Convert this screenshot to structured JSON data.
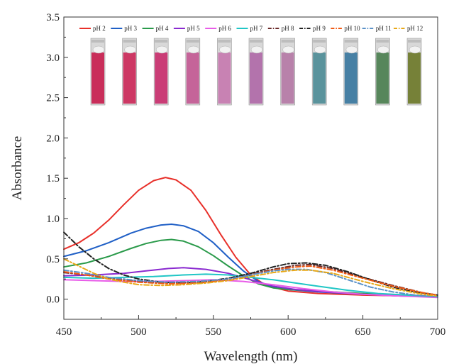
{
  "chart_data": {
    "type": "line",
    "xlabel": "Wavelength (nm)",
    "ylabel": "Absorbance",
    "xlim": [
      450,
      700
    ],
    "ylim": [
      -0.25,
      3.5
    ],
    "xticks": [
      "450",
      "500",
      "550",
      "600",
      "650",
      "700"
    ],
    "yticks": [
      "0.0",
      "0.5",
      "1.0",
      "1.5",
      "2.0",
      "2.5",
      "3.0",
      "3.5"
    ],
    "grid": false,
    "legend_position": "top",
    "inset": "photograph of 11 cuvettes above the curves, colour changing from red (pH 2) through pink and purple to blue-green (pH 9-11) and olive (pH 12)",
    "cuvette_colors": [
      "#c8204f",
      "#cc2a5a",
      "#c9306e",
      "#c35a94",
      "#c77bb0",
      "#b06aa8",
      "#b57aa6",
      "#4f8d97",
      "#3b78a0",
      "#4c7f50",
      "#6e7a2a"
    ],
    "series": [
      {
        "name": "pH 2",
        "color": "#e8302a",
        "dash": "solid",
        "x": [
          450,
          460,
          470,
          480,
          490,
          500,
          510,
          518,
          525,
          535,
          545,
          555,
          565,
          575,
          585,
          600,
          620,
          650,
          680,
          700
        ],
        "y": [
          0.62,
          0.7,
          0.82,
          0.98,
          1.17,
          1.35,
          1.47,
          1.51,
          1.48,
          1.35,
          1.1,
          0.8,
          0.52,
          0.3,
          0.17,
          0.1,
          0.07,
          0.05,
          0.04,
          0.03
        ]
      },
      {
        "name": "pH 3",
        "color": "#1f5fc6",
        "dash": "solid",
        "x": [
          450,
          465,
          480,
          495,
          505,
          515,
          522,
          530,
          540,
          550,
          560,
          570,
          580,
          590,
          600,
          620,
          650,
          680,
          700
        ],
        "y": [
          0.53,
          0.6,
          0.7,
          0.82,
          0.88,
          0.92,
          0.93,
          0.91,
          0.84,
          0.7,
          0.52,
          0.35,
          0.22,
          0.15,
          0.12,
          0.09,
          0.06,
          0.04,
          0.03
        ]
      },
      {
        "name": "pH 4",
        "color": "#2a9a4a",
        "dash": "solid",
        "x": [
          450,
          465,
          480,
          495,
          505,
          515,
          522,
          530,
          540,
          550,
          560,
          570,
          580,
          590,
          600,
          620,
          650,
          680,
          700
        ],
        "y": [
          0.4,
          0.45,
          0.53,
          0.63,
          0.69,
          0.73,
          0.74,
          0.72,
          0.65,
          0.54,
          0.41,
          0.29,
          0.19,
          0.14,
          0.12,
          0.1,
          0.07,
          0.05,
          0.03
        ]
      },
      {
        "name": "pH 5",
        "color": "#8a2ad0",
        "dash": "solid",
        "x": [
          450,
          470,
          490,
          505,
          520,
          530,
          545,
          560,
          575,
          590,
          605,
          625,
          650,
          675,
          700
        ],
        "y": [
          0.29,
          0.3,
          0.32,
          0.35,
          0.38,
          0.39,
          0.37,
          0.32,
          0.24,
          0.16,
          0.12,
          0.09,
          0.06,
          0.04,
          0.03
        ]
      },
      {
        "name": "pH 6",
        "color": "#e85ce8",
        "dash": "solid",
        "x": [
          450,
          470,
          490,
          510,
          530,
          550,
          570,
          590,
          610,
          630,
          650,
          675,
          700
        ],
        "y": [
          0.24,
          0.23,
          0.22,
          0.22,
          0.23,
          0.24,
          0.22,
          0.18,
          0.13,
          0.09,
          0.06,
          0.04,
          0.02
        ]
      },
      {
        "name": "pH 7",
        "color": "#20c6c6",
        "dash": "solid",
        "x": [
          450,
          470,
          490,
          510,
          530,
          545,
          560,
          575,
          590,
          605,
          620,
          640,
          660,
          680,
          700
        ],
        "y": [
          0.27,
          0.26,
          0.27,
          0.28,
          0.3,
          0.31,
          0.3,
          0.27,
          0.24,
          0.2,
          0.16,
          0.11,
          0.07,
          0.05,
          0.03
        ]
      },
      {
        "name": "pH 8",
        "color": "#6b2a2a",
        "dash": "dashdot",
        "x": [
          450,
          465,
          480,
          500,
          520,
          540,
          560,
          575,
          590,
          605,
          615,
          630,
          650,
          670,
          690,
          700
        ],
        "y": [
          0.33,
          0.3,
          0.26,
          0.22,
          0.2,
          0.21,
          0.25,
          0.31,
          0.37,
          0.42,
          0.43,
          0.38,
          0.27,
          0.17,
          0.08,
          0.05
        ]
      },
      {
        "name": "pH 9",
        "color": "#222222",
        "dash": "dashdot",
        "x": [
          450,
          460,
          470,
          480,
          490,
          500,
          515,
          530,
          545,
          560,
          575,
          590,
          600,
          612,
          625,
          640,
          655,
          670,
          685,
          700
        ],
        "y": [
          0.83,
          0.65,
          0.5,
          0.38,
          0.3,
          0.25,
          0.21,
          0.2,
          0.22,
          0.26,
          0.32,
          0.4,
          0.44,
          0.45,
          0.42,
          0.34,
          0.24,
          0.15,
          0.09,
          0.05
        ]
      },
      {
        "name": "pH 10",
        "color": "#f05a14",
        "dash": "dashdot",
        "x": [
          450,
          465,
          480,
          500,
          520,
          540,
          560,
          575,
          590,
          605,
          615,
          630,
          650,
          670,
          690,
          700
        ],
        "y": [
          0.34,
          0.3,
          0.25,
          0.21,
          0.19,
          0.2,
          0.24,
          0.3,
          0.36,
          0.4,
          0.41,
          0.36,
          0.26,
          0.16,
          0.08,
          0.05
        ]
      },
      {
        "name": "pH 11",
        "color": "#5b92c8",
        "dash": "dashdot",
        "x": [
          450,
          465,
          480,
          500,
          520,
          540,
          560,
          575,
          590,
          600,
          612,
          625,
          640,
          655,
          670,
          685,
          700
        ],
        "y": [
          0.36,
          0.32,
          0.27,
          0.23,
          0.21,
          0.22,
          0.25,
          0.3,
          0.35,
          0.37,
          0.37,
          0.33,
          0.24,
          0.15,
          0.09,
          0.05,
          0.03
        ]
      },
      {
        "name": "pH 12",
        "color": "#e8a818",
        "dash": "dashdot",
        "x": [
          450,
          460,
          470,
          480,
          490,
          500,
          515,
          530,
          545,
          560,
          575,
          590,
          605,
          615,
          630,
          650,
          670,
          690,
          700
        ],
        "y": [
          0.5,
          0.41,
          0.32,
          0.25,
          0.21,
          0.18,
          0.17,
          0.18,
          0.2,
          0.23,
          0.28,
          0.33,
          0.36,
          0.36,
          0.32,
          0.22,
          0.13,
          0.06,
          0.04
        ]
      }
    ]
  }
}
